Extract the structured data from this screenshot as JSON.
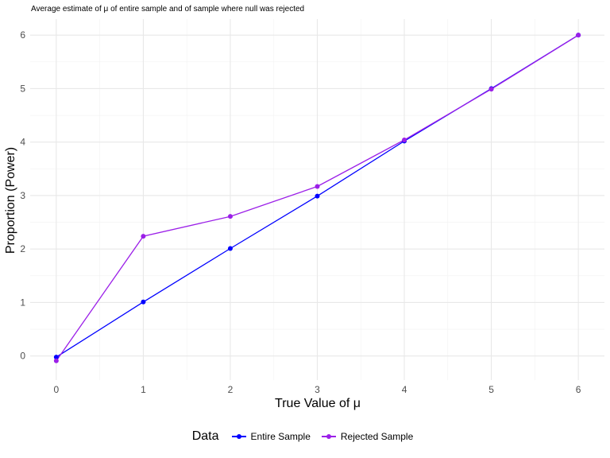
{
  "chart_data": {
    "type": "line",
    "title": "Average estimate of μ of entire sample and of sample where null was rejected",
    "xlabel": "True Value of μ",
    "ylabel": "Proportion (Power)",
    "x": [
      0,
      1,
      2,
      3,
      4,
      5,
      6
    ],
    "xlim": [
      -0.3,
      6.3
    ],
    "ylim": [
      -0.45,
      6.3
    ],
    "xticks": [
      "0",
      "1",
      "2",
      "3",
      "4",
      "5",
      "6"
    ],
    "yticks": [
      "0",
      "1",
      "2",
      "3",
      "4",
      "5",
      "6"
    ],
    "grid": true,
    "legend": {
      "title": "Data",
      "placement": "bottom"
    },
    "series": [
      {
        "name": "Entire Sample",
        "color": "#0000ff",
        "values": [
          -0.02,
          1.01,
          2.01,
          2.99,
          4.02,
          5.0,
          6.0
        ]
      },
      {
        "name": "Rejected Sample",
        "color": "#9b1fe8",
        "values": [
          -0.09,
          2.24,
          2.61,
          3.17,
          4.04,
          4.99,
          6.0
        ]
      }
    ]
  }
}
